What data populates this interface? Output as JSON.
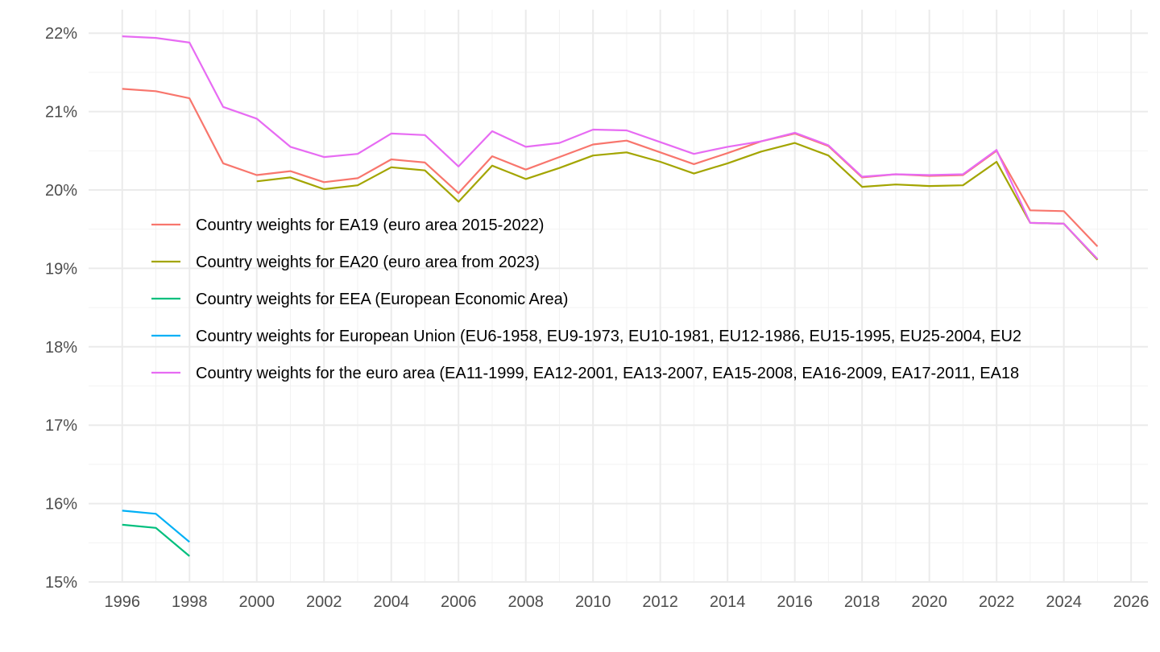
{
  "chart_data": {
    "type": "line",
    "title": "",
    "xlabel": "",
    "ylabel": "",
    "xlim": [
      1995,
      2026.5
    ],
    "ylim": [
      15,
      22.3
    ],
    "x_ticks": [
      1996,
      1998,
      2000,
      2002,
      2004,
      2006,
      2008,
      2010,
      2012,
      2014,
      2016,
      2018,
      2020,
      2022,
      2024,
      2026
    ],
    "y_ticks": [
      {
        "value": 15,
        "label": "15%"
      },
      {
        "value": 16,
        "label": "16%"
      },
      {
        "value": 17,
        "label": "17%"
      },
      {
        "value": 18,
        "label": "18%"
      },
      {
        "value": 19,
        "label": "19%"
      },
      {
        "value": 20,
        "label": "20%"
      },
      {
        "value": 21,
        "label": "21%"
      },
      {
        "value": 22,
        "label": "22%"
      }
    ],
    "grid": true,
    "legend_position": "inside-left",
    "series": [
      {
        "name": "Country weights for EA19 (euro area 2015-2022)",
        "color": "#F8766D",
        "x": [
          1996,
          1997,
          1998,
          1999,
          2000,
          2001,
          2002,
          2003,
          2004,
          2005,
          2006,
          2007,
          2008,
          2009,
          2010,
          2011,
          2012,
          2013,
          2014,
          2015,
          2016,
          2017,
          2018,
          2019,
          2020,
          2021,
          2022,
          2023,
          2024,
          2025
        ],
        "values": [
          21.29,
          21.26,
          21.17,
          20.34,
          20.19,
          20.24,
          20.1,
          20.15,
          20.39,
          20.35,
          19.96,
          20.43,
          20.26,
          20.42,
          20.58,
          20.63,
          20.48,
          20.33,
          20.47,
          20.62,
          20.72,
          20.56,
          20.16,
          20.2,
          20.18,
          20.19,
          20.5,
          19.74,
          19.73,
          19.28
        ]
      },
      {
        "name": "Country weights for EA20 (euro area from 2023)",
        "color": "#A3A500",
        "x": [
          2000,
          2001,
          2002,
          2003,
          2004,
          2005,
          2006,
          2007,
          2008,
          2009,
          2010,
          2011,
          2012,
          2013,
          2014,
          2015,
          2016,
          2017,
          2018,
          2019,
          2020,
          2021,
          2022,
          2023,
          2024,
          2025
        ],
        "values": [
          20.11,
          20.16,
          20.01,
          20.06,
          20.29,
          20.25,
          19.85,
          20.31,
          20.14,
          20.28,
          20.44,
          20.48,
          20.36,
          20.21,
          20.34,
          20.49,
          20.6,
          20.44,
          20.04,
          20.07,
          20.05,
          20.06,
          20.36,
          19.58,
          19.57,
          19.11
        ]
      },
      {
        "name": "Country weights for EEA (European Economic Area)",
        "color": "#00BF7D",
        "x": [
          1996,
          1997,
          1998
        ],
        "values": [
          15.73,
          15.69,
          15.33
        ]
      },
      {
        "name": "Country weights for European Union (EU6-1958, EU9-1973, EU10-1981, EU12-1986, EU15-1995, EU25-2004, EU2",
        "color": "#00B0F6",
        "x": [
          1996,
          1997,
          1998
        ],
        "values": [
          15.91,
          15.87,
          15.51
        ]
      },
      {
        "name": "Country weights for the euro area (EA11-1999, EA12-2001, EA13-2007, EA15-2008, EA16-2009, EA17-2011, EA18",
        "color": "#E76BF3",
        "x": [
          1996,
          1997,
          1998,
          1999,
          2000,
          2001,
          2002,
          2003,
          2004,
          2005,
          2006,
          2007,
          2008,
          2009,
          2010,
          2011,
          2012,
          2013,
          2014,
          2015,
          2016,
          2017,
          2018,
          2019,
          2020,
          2021,
          2022,
          2023,
          2024,
          2025
        ],
        "values": [
          21.96,
          21.94,
          21.88,
          21.06,
          20.91,
          20.55,
          20.42,
          20.46,
          20.72,
          20.7,
          20.3,
          20.75,
          20.55,
          20.6,
          20.77,
          20.76,
          20.61,
          20.46,
          20.55,
          20.62,
          20.73,
          20.57,
          20.17,
          20.2,
          20.19,
          20.2,
          20.51,
          19.58,
          19.57,
          19.12
        ]
      }
    ]
  }
}
